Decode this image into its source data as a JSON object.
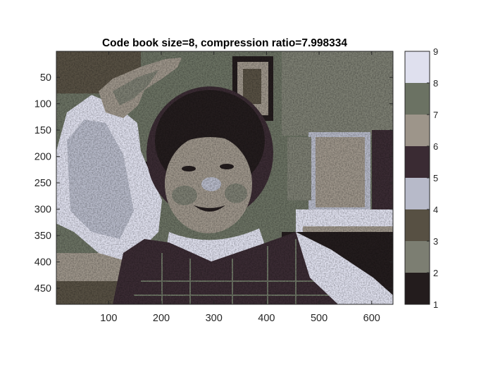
{
  "chart_data": {
    "type": "heatmap",
    "title": "Code book size=8, compression ratio=7.998334",
    "xlabel": "",
    "ylabel": "",
    "xlim": [
      0.5,
      640.5
    ],
    "ylim": [
      0.5,
      480.5
    ],
    "y_reversed": true,
    "x_ticks": [
      100,
      200,
      300,
      400,
      500,
      600
    ],
    "y_ticks": [
      50,
      100,
      150,
      200,
      250,
      300,
      350,
      400,
      450
    ],
    "colorbar": {
      "ticks": [
        1,
        2,
        3,
        4,
        5,
        6,
        7,
        8,
        9
      ],
      "range": [
        1,
        9
      ],
      "levels": [
        {
          "index": 1,
          "color": "#231c1d"
        },
        {
          "index": 2,
          "color": "#7c7e72"
        },
        {
          "index": 3,
          "color": "#575043"
        },
        {
          "index": 4,
          "color": "#b7bac9"
        },
        {
          "index": 5,
          "color": "#3a2b33"
        },
        {
          "index": 6,
          "color": "#9d958a"
        },
        {
          "index": 7,
          "color": "#6b7263"
        },
        {
          "index": 8,
          "color": "#dfe0ee"
        }
      ]
    },
    "image_content": "quantized photograph of a smiling child raising a hand"
  }
}
